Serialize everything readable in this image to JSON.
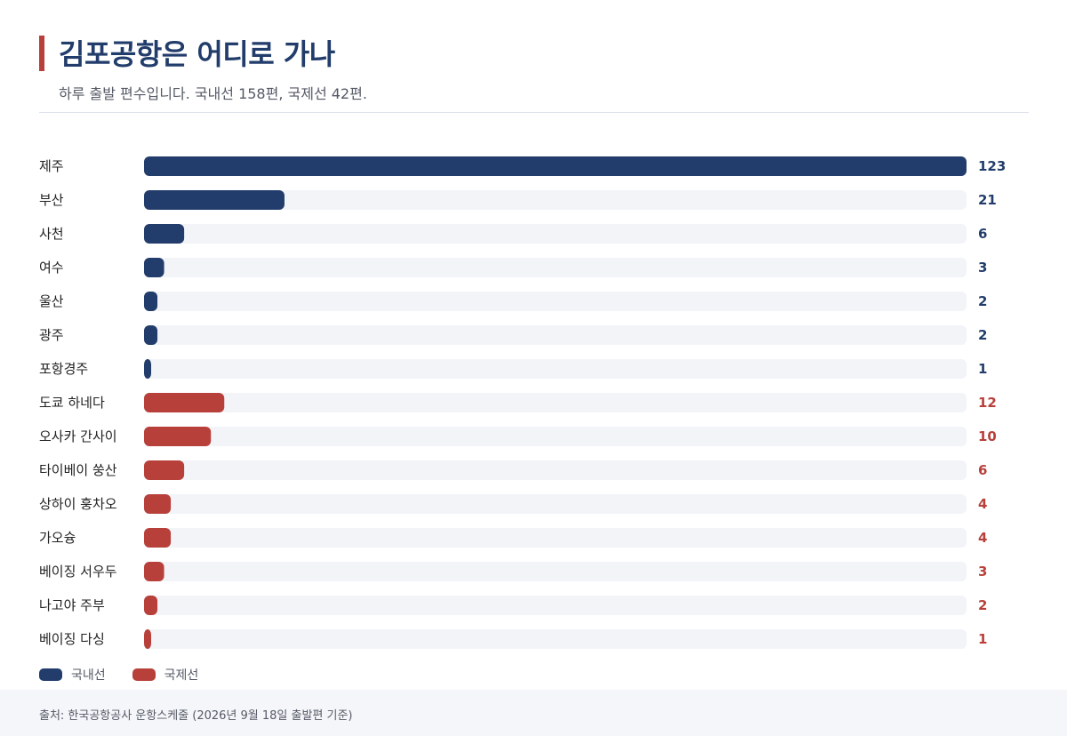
{
  "header": {
    "title": "김포공항은 어디로 가나",
    "subtitle": "하루 출발 편수입니다. 국내선 158편, 국제선 42편."
  },
  "colors": {
    "domestic": "#223d6b",
    "international": "#b8403b",
    "track": "#f2f4f8",
    "accent": "#b8403b"
  },
  "chart_data": {
    "type": "bar",
    "orientation": "horizontal",
    "categories": [
      "제주",
      "부산",
      "사천",
      "여수",
      "울산",
      "광주",
      "포항경주",
      "도쿄 하네다",
      "오사카 간사이",
      "타이베이 쑹산",
      "상하이 훙차오",
      "가오슝",
      "베이징 서우두",
      "나고야 주부",
      "베이징 다싱"
    ],
    "values": [
      123,
      21,
      6,
      3,
      2,
      2,
      1,
      12,
      10,
      6,
      4,
      4,
      3,
      2,
      1
    ],
    "groups": [
      "국내선",
      "국내선",
      "국내선",
      "국내선",
      "국내선",
      "국내선",
      "국내선",
      "국제선",
      "국제선",
      "국제선",
      "국제선",
      "국제선",
      "국제선",
      "국제선",
      "국제선"
    ],
    "xlim": [
      0,
      123
    ],
    "legend": [
      "국내선",
      "국제선"
    ],
    "legend_position": "bottom-left",
    "grid": false
  },
  "footer": {
    "source": "출처: 한국공항공사 운항스케줄 (2026년 9월 18일 출발편 기준)"
  }
}
